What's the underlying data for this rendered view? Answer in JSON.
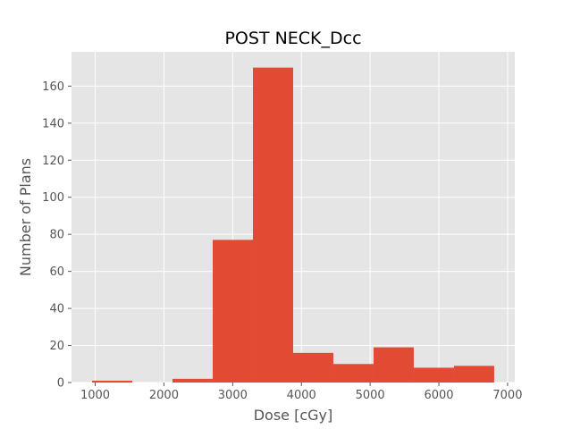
{
  "chart_data": {
    "type": "bar",
    "subtype": "histogram",
    "title": "POST NECK_Dcc",
    "xlabel": "Dose [cGy]",
    "ylabel": "Number of Plans",
    "bin_edges": [
      955,
      1540,
      2125,
      2710,
      3295,
      3880,
      4465,
      5050,
      5635,
      6220,
      6805
    ],
    "values": [
      1,
      0,
      2,
      77,
      170,
      16,
      10,
      19,
      8,
      9
    ],
    "xlim": [
      655,
      7105
    ],
    "ylim": [
      0,
      178.5
    ],
    "xticks": [
      1000,
      2000,
      3000,
      4000,
      5000,
      6000,
      7000
    ],
    "yticks": [
      0,
      20,
      40,
      60,
      80,
      100,
      120,
      140,
      160
    ],
    "grid": true,
    "legend": false,
    "style": "ggplot",
    "colors": {
      "bar": "#E24A33",
      "plot_background": "#E5E5E5",
      "grid": "#FFFFFF",
      "text": "#555555",
      "title": "#000000"
    }
  }
}
